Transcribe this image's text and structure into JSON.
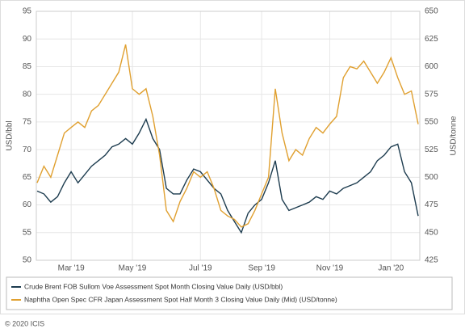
{
  "chart_data": {
    "type": "line",
    "ylabel": "USD/bbl",
    "y2label": "USD/tonne",
    "categories": [
      null,
      null,
      null,
      null,
      null,
      "Mar '19",
      null,
      null,
      null,
      null,
      null,
      null,
      null,
      null,
      "May '19",
      null,
      null,
      null,
      null,
      null,
      null,
      null,
      null,
      null,
      "Jul '19",
      null,
      null,
      null,
      null,
      null,
      null,
      null,
      null,
      "Sep '19",
      null,
      null,
      null,
      null,
      null,
      null,
      null,
      null,
      null,
      "Nov '19",
      null,
      null,
      null,
      null,
      null,
      null,
      null,
      null,
      "Jan '20",
      null,
      null,
      null,
      null
    ],
    "series": [
      {
        "name": "Crude Brent FOB Sullom Voe Assessment Spot Month Closing Value Daily (USD/bbl)",
        "color": "#1d3c4f",
        "values": [
          62.5,
          62,
          60.5,
          61.5,
          64,
          66,
          64,
          65.5,
          67,
          68,
          69,
          70.5,
          71,
          72,
          71,
          73,
          75.5,
          72,
          70,
          63,
          62,
          62,
          64.5,
          66.5,
          66,
          64.5,
          63,
          62,
          59,
          57,
          55,
          58.5,
          60,
          61,
          64,
          68,
          61,
          59,
          59.5,
          60,
          60.5,
          61.5,
          61,
          62.5,
          62,
          63,
          63.5,
          64,
          65,
          66,
          68,
          69,
          70.5,
          71,
          66,
          64,
          58
        ]
      },
      {
        "name": "Naphtha Open Spec CFR Japan Assessment Spot Half Month 3 Closing Value Daily (Mid) (USD/tonne)",
        "color": "#e0a030",
        "axis": "y2",
        "values": [
          495,
          510,
          500,
          520,
          540,
          545,
          550,
          545,
          560,
          565,
          575,
          585,
          595,
          620,
          580,
          575,
          580,
          555,
          520,
          470,
          460,
          478,
          490,
          505,
          500,
          505,
          490,
          470,
          465,
          462,
          455,
          458,
          470,
          485,
          500,
          580,
          540,
          515,
          525,
          520,
          535,
          545,
          540,
          548,
          555,
          590,
          600,
          598,
          605,
          595,
          585,
          595,
          608,
          590,
          575,
          578,
          548
        ]
      }
    ],
    "ylim": [
      50,
      95
    ],
    "yticks": [
      50,
      55,
      60,
      65,
      70,
      75,
      80,
      85,
      90,
      95
    ],
    "y2lim": [
      425,
      650
    ],
    "y2ticks": [
      425,
      450,
      475,
      500,
      525,
      550,
      575,
      600,
      625,
      650
    ],
    "grid": true
  },
  "copyright": "© 2020 ICIS"
}
